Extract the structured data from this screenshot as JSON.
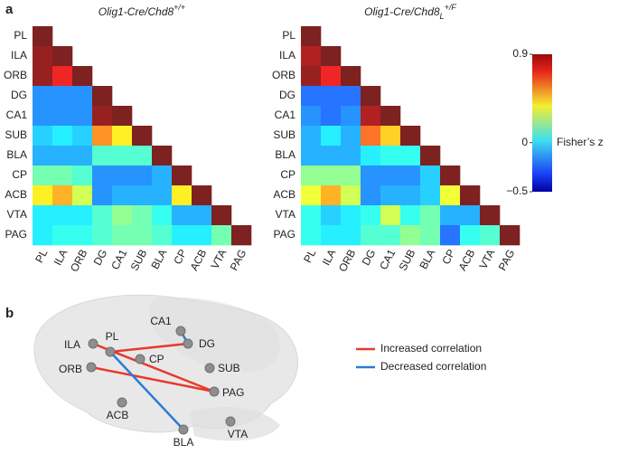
{
  "panel_a_label": "a",
  "chart_data": [
    {
      "type": "heatmap",
      "title": {
        "main": "Olig1-Cre/Chd8",
        "sup": "+/+"
      },
      "categories": [
        "PL",
        "ILA",
        "ORB",
        "DG",
        "CA1",
        "SUB",
        "BLA",
        "CP",
        "ACB",
        "VTA",
        "PAG"
      ],
      "values": [
        [
          0.9
        ],
        [
          0.85,
          0.9
        ],
        [
          0.85,
          0.75,
          0.9
        ],
        [
          -0.15,
          -0.15,
          -0.15,
          0.9
        ],
        [
          -0.15,
          -0.15,
          -0.15,
          0.85,
          0.9
        ],
        [
          -0.05,
          0.0,
          -0.05,
          0.55,
          0.4,
          0.9
        ],
        [
          -0.1,
          -0.1,
          -0.1,
          0.1,
          0.1,
          0.1,
          0.9
        ],
        [
          0.15,
          0.15,
          0.1,
          -0.15,
          -0.15,
          -0.15,
          -0.1,
          0.9
        ],
        [
          0.4,
          0.5,
          0.3,
          -0.15,
          -0.1,
          -0.1,
          -0.1,
          0.4,
          0.9
        ],
        [
          0.0,
          0.0,
          0.0,
          0.1,
          0.2,
          0.15,
          0.05,
          -0.1,
          -0.1,
          0.9
        ],
        [
          0.0,
          0.05,
          0.05,
          0.1,
          0.15,
          0.15,
          0.1,
          0.0,
          0.0,
          0.15,
          0.9
        ]
      ],
      "colormap": "jet",
      "clim": [
        -0.5,
        0.9
      ]
    },
    {
      "type": "heatmap",
      "title": {
        "main": "Olig1-Cre/Chd8",
        "sub": "L",
        "sup": "+/F"
      },
      "categories": [
        "PL",
        "ILA",
        "ORB",
        "DG",
        "CA1",
        "SUB",
        "BLA",
        "CP",
        "ACB",
        "VTA",
        "PAG"
      ],
      "values": [
        [
          0.9
        ],
        [
          0.8,
          0.9
        ],
        [
          0.85,
          0.75,
          0.9
        ],
        [
          -0.2,
          -0.2,
          -0.2,
          0.9
        ],
        [
          -0.15,
          -0.2,
          -0.15,
          0.8,
          0.9
        ],
        [
          -0.1,
          0.0,
          -0.1,
          0.6,
          0.45,
          0.9
        ],
        [
          -0.1,
          -0.1,
          -0.1,
          0.0,
          0.05,
          0.05,
          0.9
        ],
        [
          0.2,
          0.2,
          0.2,
          -0.15,
          -0.15,
          -0.15,
          -0.05,
          0.9
        ],
        [
          0.35,
          0.5,
          0.3,
          -0.15,
          -0.1,
          -0.1,
          -0.05,
          0.35,
          0.9
        ],
        [
          0.05,
          -0.05,
          0.0,
          0.05,
          0.3,
          0.05,
          0.15,
          -0.1,
          -0.1,
          0.9
        ],
        [
          0.05,
          0.0,
          0.0,
          0.1,
          0.1,
          0.2,
          0.15,
          -0.2,
          0.05,
          0.1,
          0.9
        ]
      ],
      "colormap": "jet",
      "clim": [
        -0.5,
        0.9
      ],
      "colorbar": {
        "label": "Fisher’s z",
        "ticks": [
          {
            "value": -0.5,
            "label": "−0.5"
          },
          0,
          0.9
        ]
      }
    }
  ],
  "panel_b": {
    "label": "b",
    "nodes": [
      "CA1",
      "DG",
      "PL",
      "ILA",
      "CP",
      "SUB",
      "ORB",
      "PAG",
      "ACB",
      "BLA",
      "VTA"
    ],
    "legend": [
      {
        "label": "Increased correlation",
        "color": "#e8392b"
      },
      {
        "label": "Decreased correlation",
        "color": "#2a7bd6"
      }
    ]
  }
}
